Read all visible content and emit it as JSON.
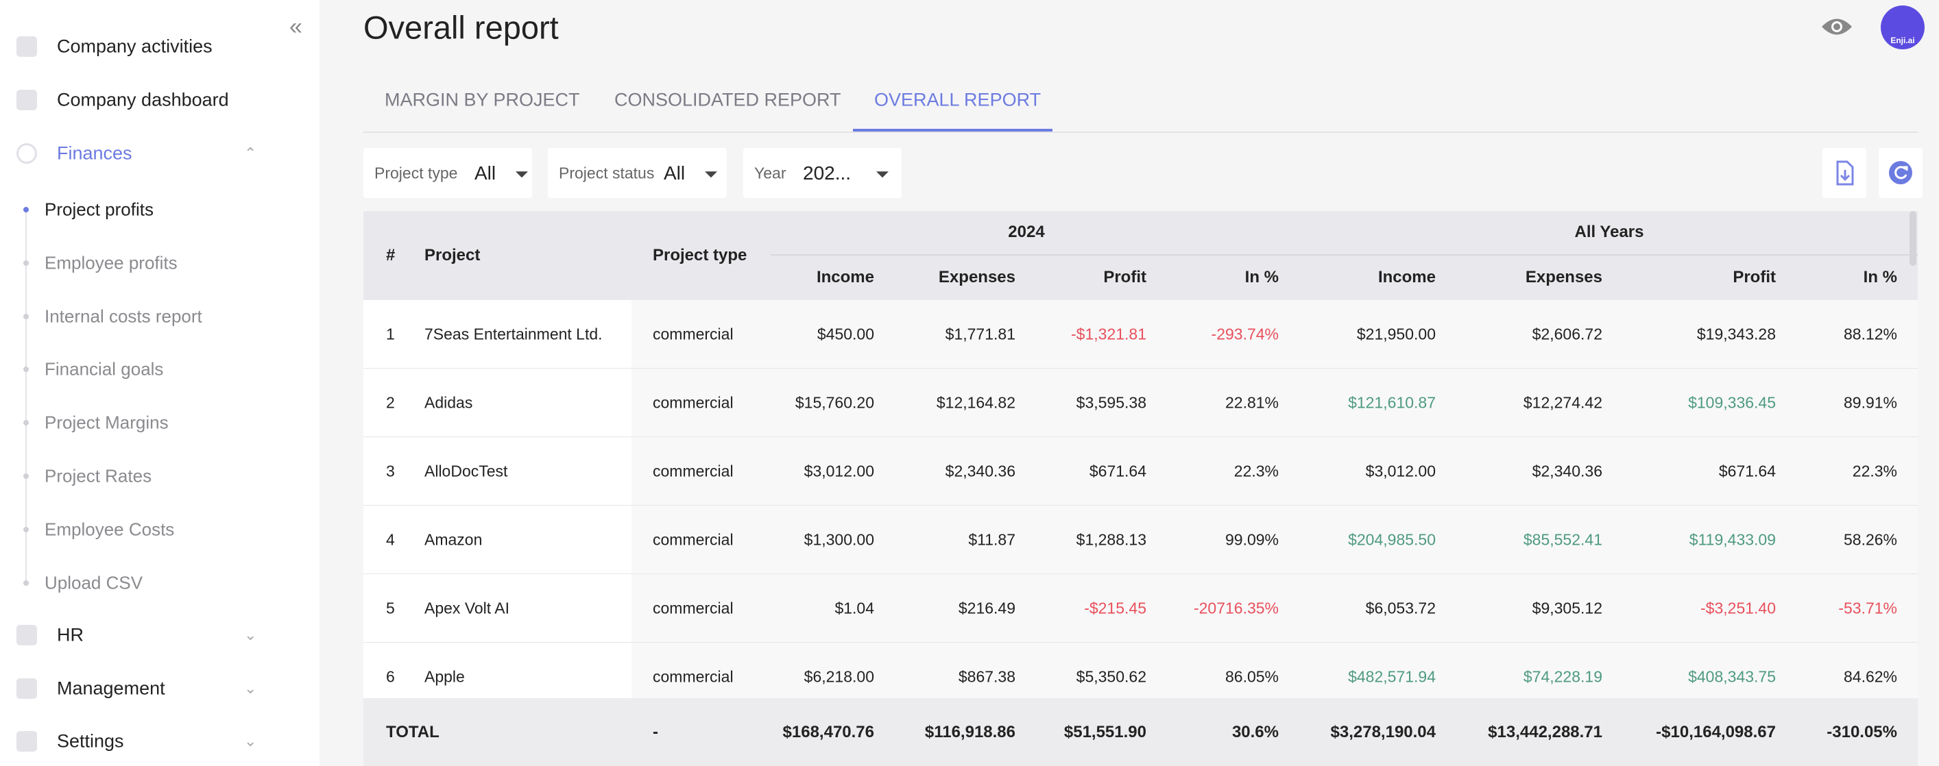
{
  "sidebar": {
    "top": [
      "Company activities",
      "Company dashboard"
    ],
    "section": "Finances",
    "subitems": [
      "Project profits",
      "Employee profits",
      "Internal costs report",
      "Financial goals",
      "Project Margins",
      "Project Rates",
      "Employee Costs",
      "Upload CSV"
    ],
    "bottom": [
      "HR",
      "Management",
      "Settings"
    ]
  },
  "header": {
    "title": "Overall report",
    "avatar": "Enji.ai"
  },
  "tabs": [
    "MARGIN BY PROJECT",
    "CONSOLIDATED REPORT",
    "OVERALL REPORT"
  ],
  "filters": [
    {
      "label": "Project type",
      "value": "All"
    },
    {
      "label": "Project status",
      "value": "All"
    },
    {
      "label": "Year",
      "value": "202..."
    }
  ],
  "table": {
    "header": {
      "num": "#",
      "project": "Project",
      "type": "Project type",
      "groups": [
        "2024",
        "All Years"
      ],
      "columns": [
        "Income",
        "Expenses",
        "Profit",
        "In %",
        "Income",
        "Expenses",
        "Profit",
        "In %"
      ]
    },
    "rows": [
      {
        "num": 1,
        "project": "7Seas Entertainment Ltd.",
        "type": "commercial",
        "cells": [
          "$450.00",
          "$1,771.81",
          {
            "text": "-$1,321.81",
            "color": "#e8505b"
          },
          {
            "text": "-293.74%",
            "color": "#e8505b"
          },
          "$21,950.00",
          "$2,606.72",
          "$19,343.28",
          "88.12%"
        ]
      },
      {
        "num": 2,
        "project": "Adidas",
        "type": "commercial",
        "cells": [
          "$15,760.20",
          "$12,164.82",
          "$3,595.38",
          "22.81%",
          {
            "text": "$121,610.87",
            "color": "#4f9a80"
          },
          "$12,274.42",
          {
            "text": "$109,336.45",
            "color": "#4f9a80"
          },
          "89.91%"
        ]
      },
      {
        "num": 3,
        "project": "AlloDocTest",
        "type": "commercial",
        "cells": [
          "$3,012.00",
          "$2,340.36",
          "$671.64",
          "22.3%",
          "$3,012.00",
          "$2,340.36",
          "$671.64",
          "22.3%"
        ]
      },
      {
        "num": 4,
        "project": "Amazon",
        "type": "commercial",
        "cells": [
          "$1,300.00",
          "$11.87",
          "$1,288.13",
          "99.09%",
          {
            "text": "$204,985.50",
            "color": "#4f9a80"
          },
          {
            "text": "$85,552.41",
            "color": "#4f9a80"
          },
          {
            "text": "$119,433.09",
            "color": "#4f9a80"
          },
          "58.26%"
        ]
      },
      {
        "num": 5,
        "project": "Apex Volt AI",
        "type": "commercial",
        "cells": [
          "$1.04",
          "$216.49",
          {
            "text": "-$215.45",
            "color": "#e8505b"
          },
          {
            "text": "-20716.35%",
            "color": "#e8505b"
          },
          "$6,053.72",
          "$9,305.12",
          {
            "text": "-$3,251.40",
            "color": "#e8505b"
          },
          {
            "text": "-53.71%",
            "color": "#e8505b"
          }
        ]
      },
      {
        "num": 6,
        "project": "Apple",
        "type": "commercial",
        "cells": [
          "$6,218.00",
          "$867.38",
          "$5,350.62",
          "86.05%",
          {
            "text": "$482,571.94",
            "color": "#4f9a80"
          },
          {
            "text": "$74,228.19",
            "color": "#4f9a80"
          },
          {
            "text": "$408,343.75",
            "color": "#4f9a80"
          },
          "84.62%"
        ]
      }
    ],
    "total": {
      "label": "TOTAL",
      "type": "-",
      "cells": [
        "$168,470.76",
        "$116,918.86",
        "$51,551.90",
        "30.6%",
        "$3,278,190.04",
        "$13,442,288.71",
        "-$10,164,098.67",
        "-310.05%"
      ]
    }
  }
}
